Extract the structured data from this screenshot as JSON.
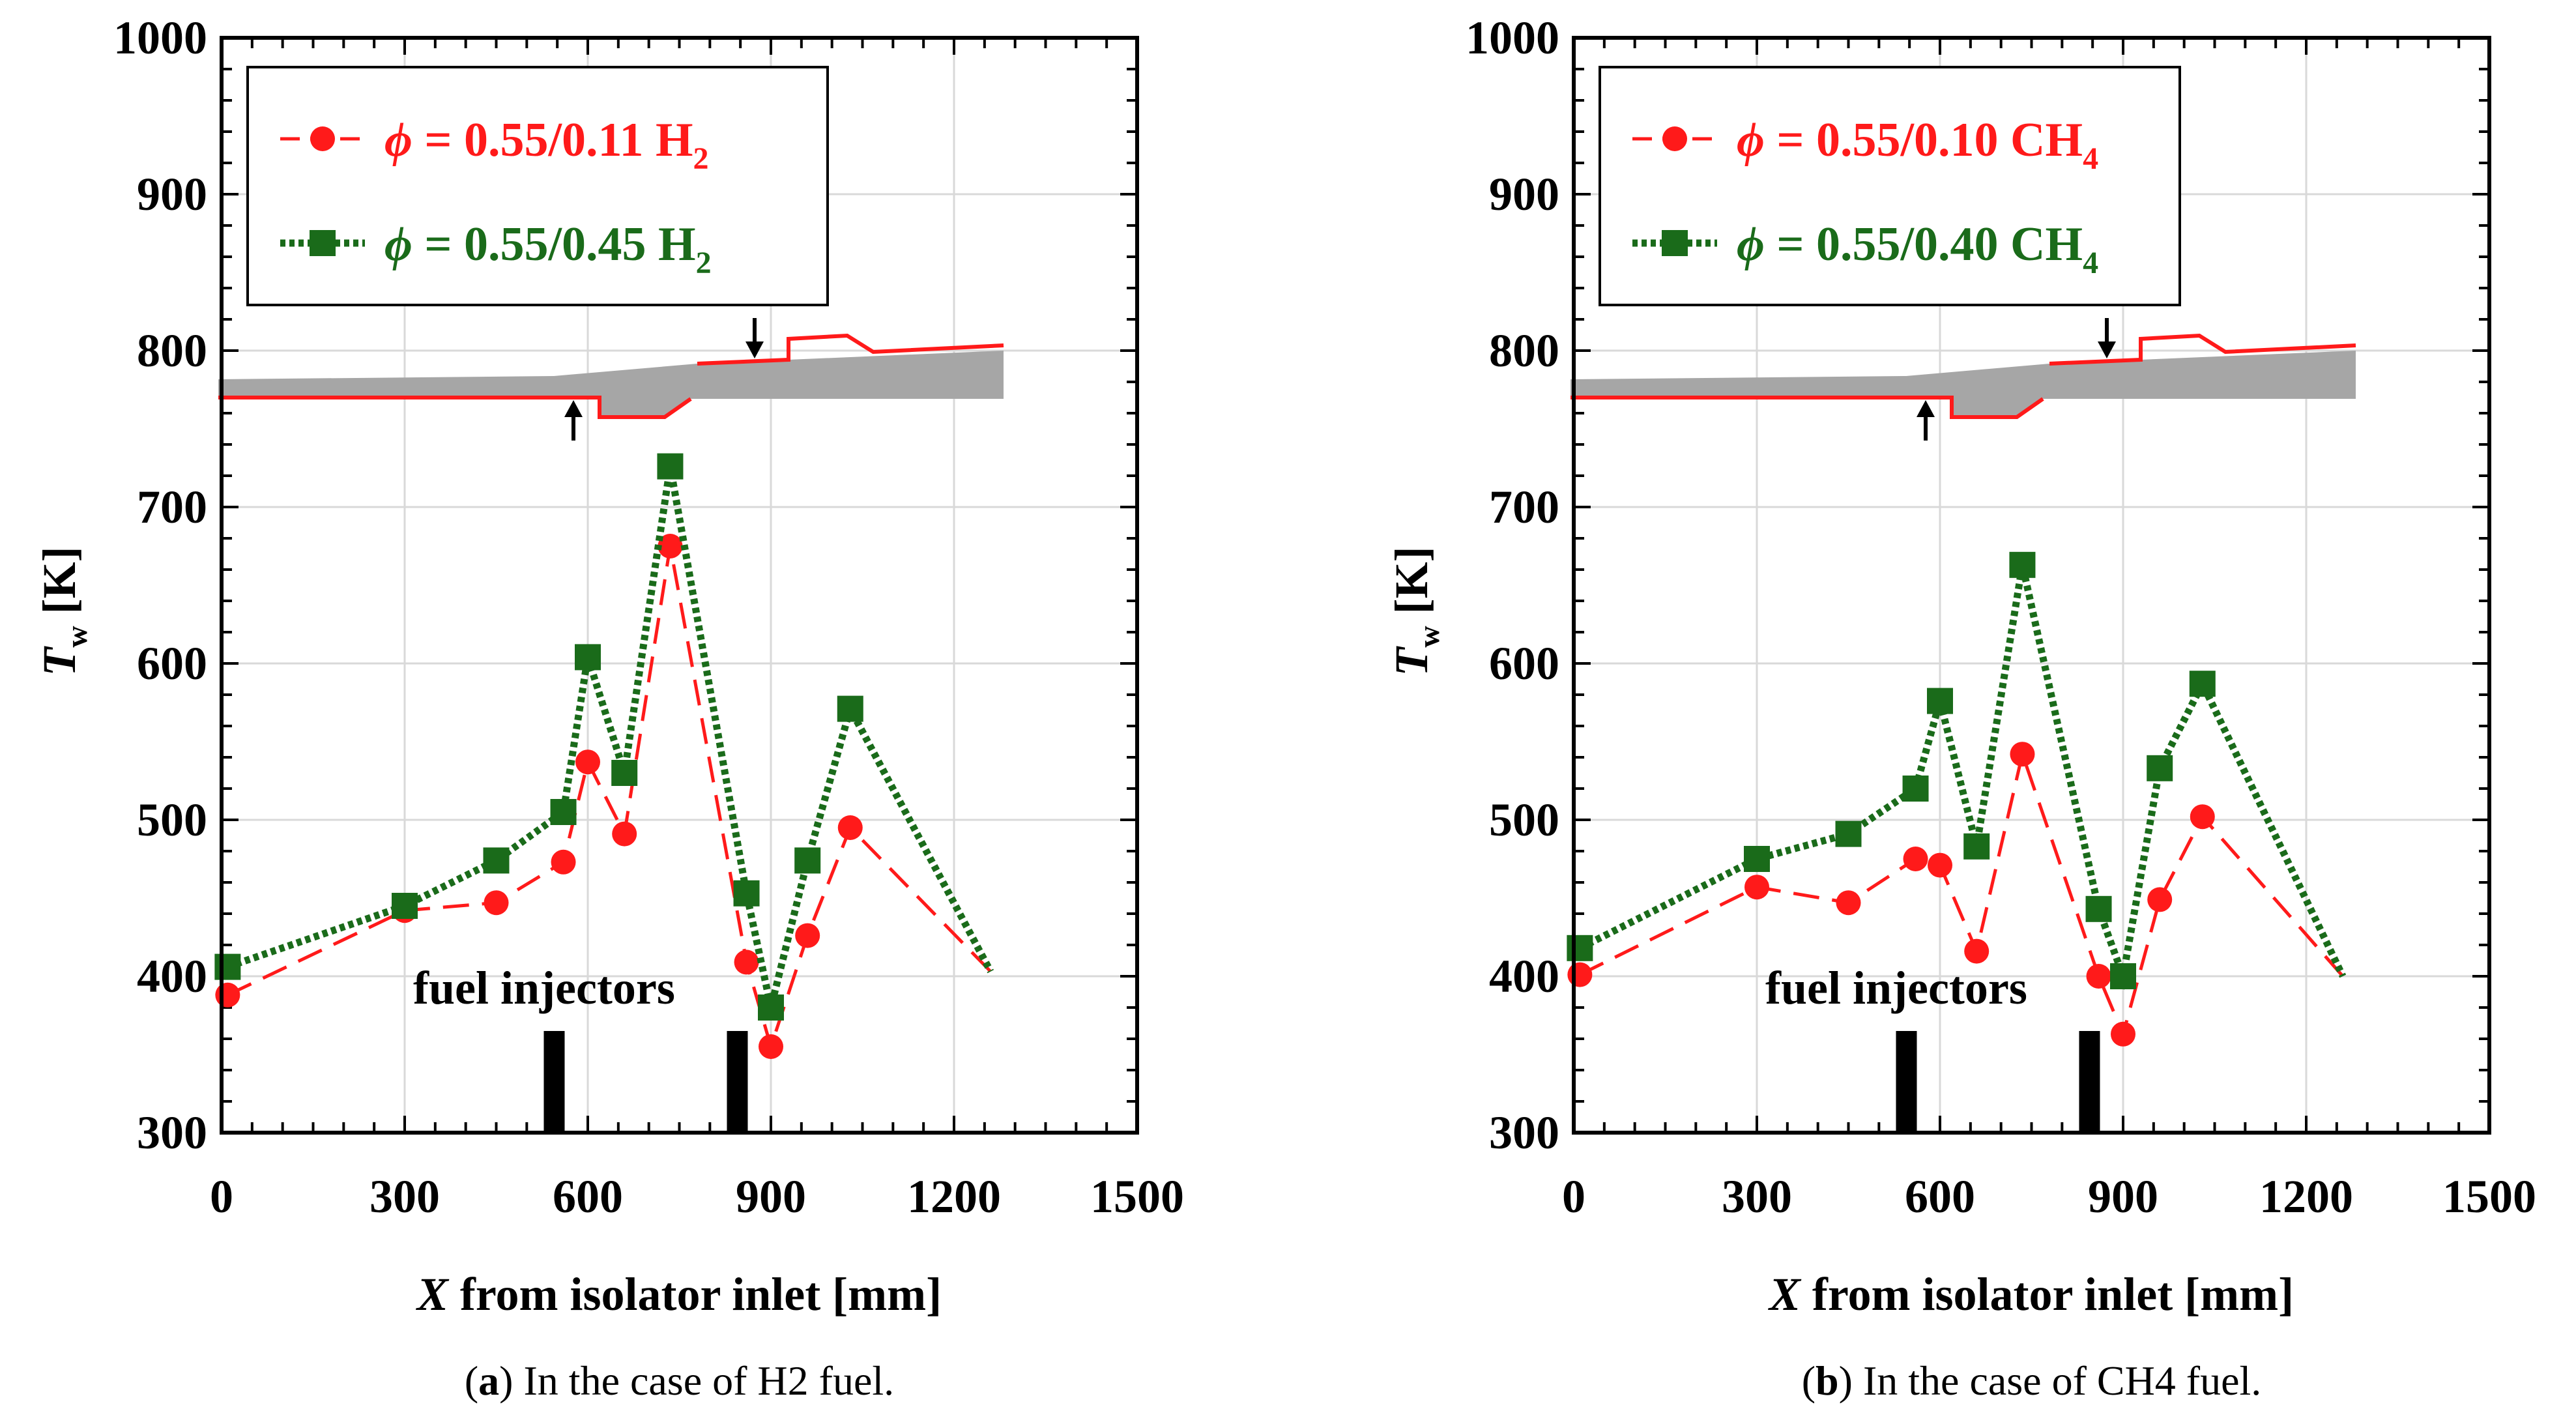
{
  "colors": {
    "red": "#ff1a1a",
    "green": "#1a6b1a",
    "gray": "#a6a6a6",
    "grid": "#d9d9d9",
    "black": "#000000"
  },
  "chart_data": [
    {
      "type": "line",
      "xlabel_var": "X",
      "xlabel_rest": " from isolator inlet [mm]",
      "ylabel_var": "T",
      "ylabel_sub": "w",
      "ylabel_unit": " [K]",
      "xlim": [
        0,
        1500
      ],
      "ylim": [
        300,
        1000
      ],
      "xticks": [
        "0",
        "300",
        "600",
        "900",
        "1200",
        "1500"
      ],
      "yticks": [
        "300",
        "400",
        "500",
        "600",
        "700",
        "800",
        "900",
        "1000"
      ],
      "grid": true,
      "legend_position": "top-left",
      "annotation": "fuel injectors",
      "injector_x": [
        545,
        845
      ],
      "caption_letter": "a",
      "caption_text": " In the case of H2 fuel.",
      "series": [
        {
          "name_prefix": " = 0.55/0.11 H",
          "name_sub": "2",
          "color": "red",
          "marker": "circle",
          "dash": "dashed",
          "x": [
            10,
            300,
            450,
            560,
            600,
            660,
            735,
            860,
            900,
            960,
            1030,
            1260
          ],
          "y": [
            388,
            442,
            447,
            473,
            537,
            491,
            675,
            409,
            355,
            426,
            495,
            403
          ]
        },
        {
          "name_prefix": " = 0.55/0.45 H",
          "name_sub": "2",
          "color": "green",
          "marker": "square",
          "dash": "dotted",
          "x": [
            10,
            300,
            450,
            560,
            600,
            660,
            735,
            860,
            900,
            960,
            1030,
            1260
          ],
          "y": [
            406,
            445,
            474,
            505,
            604,
            530,
            726,
            453,
            380,
            474,
            571,
            403
          ]
        }
      ]
    },
    {
      "type": "line",
      "xlabel_var": "X",
      "xlabel_rest": " from isolator inlet [mm]",
      "ylabel_var": "T",
      "ylabel_sub": "w",
      "ylabel_unit": " [K]",
      "xlim": [
        0,
        1500
      ],
      "ylim": [
        300,
        1000
      ],
      "xticks": [
        "0",
        "300",
        "600",
        "900",
        "1200",
        "1500"
      ],
      "yticks": [
        "300",
        "400",
        "500",
        "600",
        "700",
        "800",
        "900",
        "1000"
      ],
      "grid": true,
      "legend_position": "top-left",
      "annotation": "fuel injectors",
      "injector_x": [
        545,
        845
      ],
      "caption_letter": "b",
      "caption_text": " In the case of CH4 fuel.",
      "series": [
        {
          "name_prefix": " = 0.55/0.10 CH",
          "name_sub": "4",
          "color": "red",
          "marker": "circle",
          "dash": "dashed",
          "x": [
            10,
            300,
            450,
            560,
            600,
            660,
            735,
            860,
            900,
            960,
            1030,
            1260
          ],
          "y": [
            401,
            457,
            447,
            475,
            471,
            416,
            542,
            400,
            363,
            449,
            502,
            400
          ]
        },
        {
          "name_prefix": " = 0.55/0.40 CH",
          "name_sub": "4",
          "color": "green",
          "marker": "square",
          "dash": "dotted",
          "x": [
            10,
            300,
            450,
            560,
            600,
            660,
            735,
            860,
            900,
            960,
            1030,
            1260
          ],
          "y": [
            418,
            475,
            491,
            520,
            576,
            483,
            663,
            443,
            400,
            533,
            587,
            400
          ]
        }
      ]
    }
  ]
}
